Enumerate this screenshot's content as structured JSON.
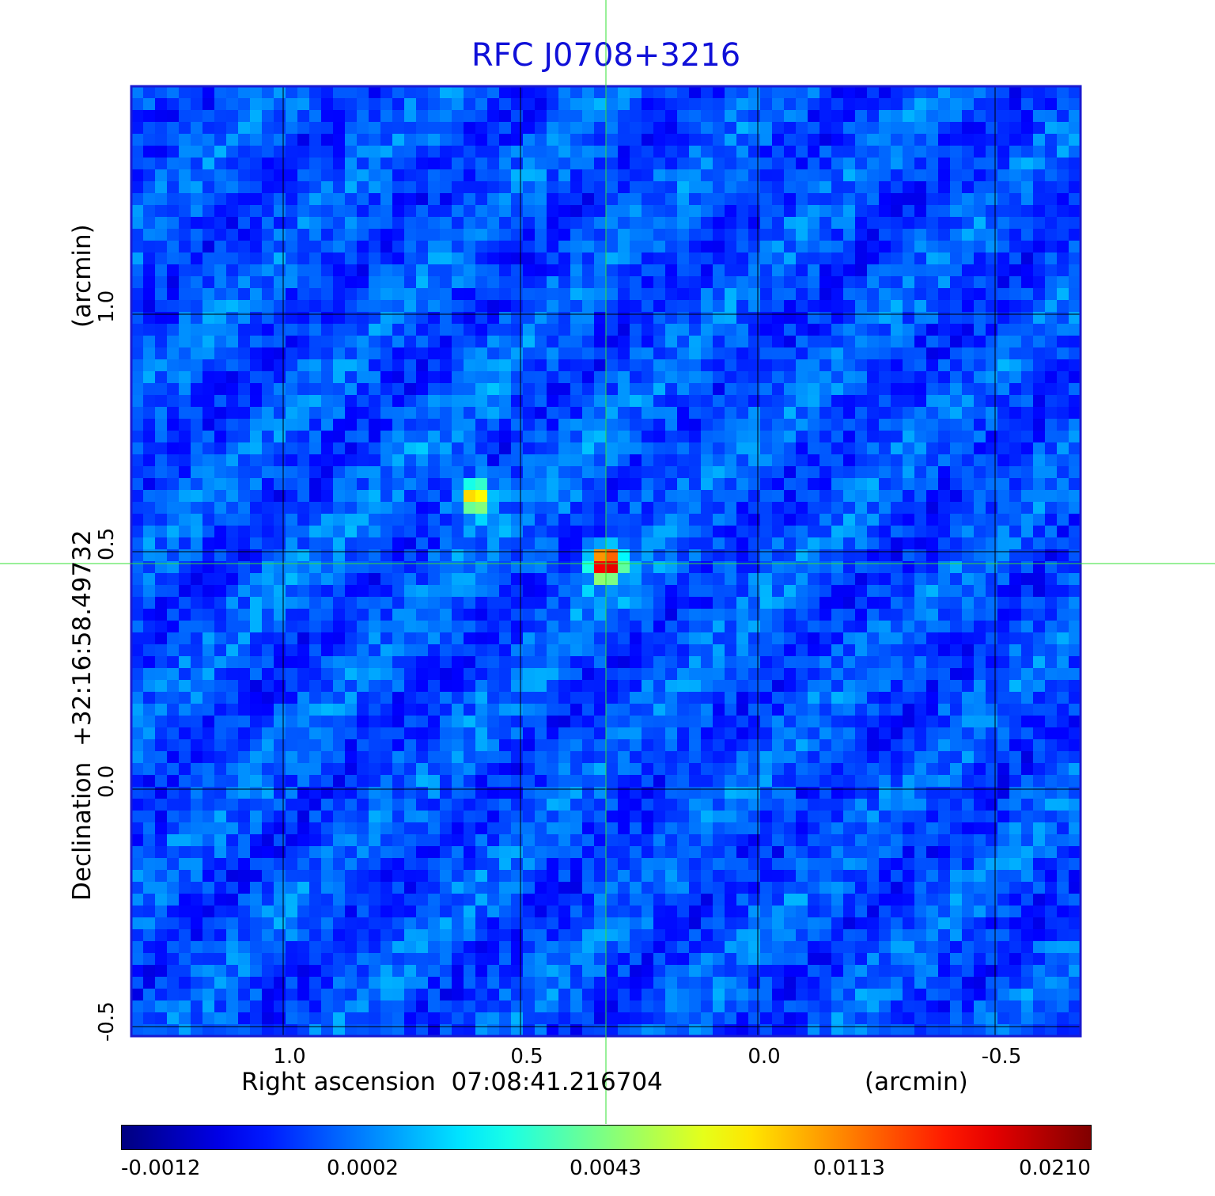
{
  "chart_data": {
    "type": "heatmap",
    "title": "RFC J0708+3216",
    "xlabel": "Right ascension  07:08:41.216704",
    "xunit": "(arcmin)",
    "ylabel": "Declination  +32:16:58.49732",
    "yunit": "(arcmin)",
    "x_ticks": [
      "1.0",
      "0.5",
      "0.0",
      "-0.5"
    ],
    "y_ticks": [
      "1.0",
      "0.5",
      "0.0",
      "-0.5"
    ],
    "xlim": [
      1.32,
      -0.68
    ],
    "ylim": [
      -0.52,
      1.48
    ],
    "grid": true,
    "colormap": "jet",
    "colorbar_ticks": [
      "-0.0012",
      "0.0002",
      "0.0043",
      "0.0113",
      "0.0210"
    ],
    "colorbar_range": [
      -0.0012,
      0.021
    ],
    "crosshair": {
      "x": 0.32,
      "y": 0.475,
      "color": "#33e033"
    },
    "sources": [
      {
        "x": 0.32,
        "y": 0.475,
        "peak": 0.021
      },
      {
        "x": 0.595,
        "y": 0.615,
        "peak": 0.016
      }
    ],
    "background_level": 0.0002
  }
}
